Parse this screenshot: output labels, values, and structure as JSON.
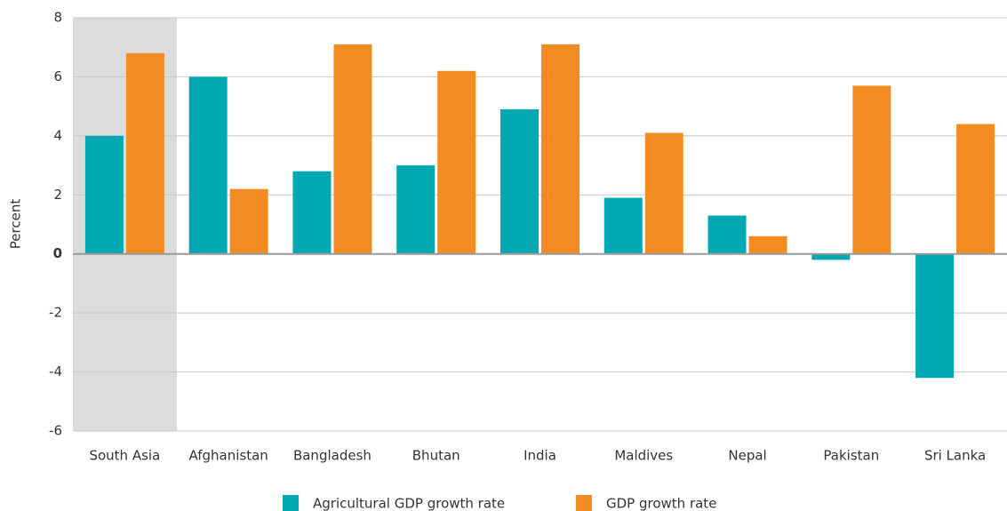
{
  "chart_data": {
    "type": "bar",
    "y_label": "Percent",
    "categories": [
      "South Asia",
      "Afghanistan",
      "Bangladesh",
      "Bhutan",
      "India",
      "Maldives",
      "Nepal",
      "Pakistan",
      "Sri Lanka"
    ],
    "series": [
      {
        "name": "Agricultural GDP growth rate",
        "color": "#00a9b1",
        "values": [
          4.0,
          6.0,
          2.8,
          3.0,
          4.9,
          1.9,
          1.3,
          -0.2,
          -4.2
        ]
      },
      {
        "name": "GDP growth rate",
        "color": "#f28c22",
        "values": [
          6.8,
          2.2,
          7.1,
          6.2,
          7.1,
          4.1,
          0.6,
          5.7,
          4.4
        ]
      }
    ],
    "ylim": [
      -6,
      8
    ],
    "yticks": [
      -6,
      -4,
      -2,
      0,
      2,
      4,
      6,
      8
    ],
    "grid": true,
    "legend": "bottom"
  }
}
